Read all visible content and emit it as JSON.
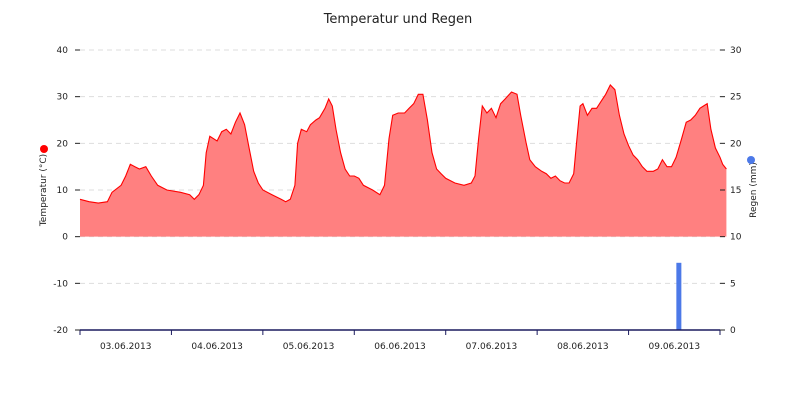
{
  "chart_data": {
    "type": "area",
    "title": "Temperatur und Regen",
    "x_ticks": [
      "03.06.2013",
      "04.06.2013",
      "05.06.2013",
      "06.06.2013",
      "07.06.2013",
      "08.06.2013",
      "09.06.2013"
    ],
    "y_left": {
      "label": "Temperatur (°C)",
      "range": [
        -20,
        40
      ],
      "ticks": [
        "40",
        "30",
        "20",
        "10",
        "0",
        "-10",
        "-20"
      ]
    },
    "y_right": {
      "label": "Regen (mm)",
      "range": [
        0,
        30
      ],
      "ticks": [
        "30",
        "25",
        "20",
        "15",
        "10",
        "5",
        "0"
      ]
    },
    "grid": true,
    "series": [
      {
        "axis": "left",
        "type": "area",
        "color": "#ff0000",
        "fill": "#ff8080",
        "points": [
          [
            0.0,
            8.0
          ],
          [
            0.1,
            7.5
          ],
          [
            0.2,
            7.2
          ],
          [
            0.3,
            7.5
          ],
          [
            0.35,
            9.5
          ],
          [
            0.45,
            11.0
          ],
          [
            0.5,
            13.0
          ],
          [
            0.55,
            15.5
          ],
          [
            0.6,
            15.0
          ],
          [
            0.65,
            14.5
          ],
          [
            0.72,
            15.0
          ],
          [
            0.78,
            13.0
          ],
          [
            0.85,
            11.0
          ],
          [
            0.95,
            10.0
          ],
          [
            1.1,
            9.5
          ],
          [
            1.2,
            9.0
          ],
          [
            1.25,
            8.0
          ],
          [
            1.3,
            9.0
          ],
          [
            1.35,
            11.0
          ],
          [
            1.38,
            18.0
          ],
          [
            1.42,
            21.5
          ],
          [
            1.5,
            20.5
          ],
          [
            1.55,
            22.5
          ],
          [
            1.6,
            23.0
          ],
          [
            1.65,
            22.0
          ],
          [
            1.7,
            24.5
          ],
          [
            1.75,
            26.5
          ],
          [
            1.8,
            24.0
          ],
          [
            1.85,
            19.0
          ],
          [
            1.9,
            14.0
          ],
          [
            1.95,
            11.5
          ],
          [
            2.0,
            10.0
          ],
          [
            2.1,
            9.0
          ],
          [
            2.2,
            8.0
          ],
          [
            2.25,
            7.5
          ],
          [
            2.3,
            8.0
          ],
          [
            2.35,
            11.0
          ],
          [
            2.38,
            20.0
          ],
          [
            2.42,
            23.0
          ],
          [
            2.48,
            22.5
          ],
          [
            2.52,
            24.0
          ],
          [
            2.58,
            25.0
          ],
          [
            2.62,
            25.5
          ],
          [
            2.68,
            27.5
          ],
          [
            2.72,
            29.5
          ],
          [
            2.76,
            28.0
          ],
          [
            2.8,
            23.0
          ],
          [
            2.85,
            18.0
          ],
          [
            2.9,
            14.5
          ],
          [
            2.95,
            13.0
          ],
          [
            3.0,
            13.0
          ],
          [
            3.05,
            12.5
          ],
          [
            3.1,
            11.0
          ],
          [
            3.2,
            10.0
          ],
          [
            3.28,
            9.0
          ],
          [
            3.33,
            11.0
          ],
          [
            3.38,
            21.0
          ],
          [
            3.42,
            26.0
          ],
          [
            3.48,
            26.5
          ],
          [
            3.55,
            26.5
          ],
          [
            3.6,
            27.5
          ],
          [
            3.65,
            28.5
          ],
          [
            3.7,
            30.5
          ],
          [
            3.75,
            30.5
          ],
          [
            3.8,
            25.0
          ],
          [
            3.85,
            18.0
          ],
          [
            3.9,
            14.5
          ],
          [
            3.95,
            13.5
          ],
          [
            4.0,
            12.5
          ],
          [
            4.1,
            11.5
          ],
          [
            4.2,
            11.0
          ],
          [
            4.28,
            11.5
          ],
          [
            4.32,
            13.0
          ],
          [
            4.36,
            21.0
          ],
          [
            4.4,
            28.0
          ],
          [
            4.45,
            26.5
          ],
          [
            4.5,
            27.5
          ],
          [
            4.55,
            25.5
          ],
          [
            4.6,
            28.5
          ],
          [
            4.65,
            29.5
          ],
          [
            4.72,
            31.0
          ],
          [
            4.78,
            30.5
          ],
          [
            4.82,
            26.0
          ],
          [
            4.88,
            20.0
          ],
          [
            4.92,
            16.5
          ],
          [
            4.98,
            15.0
          ],
          [
            5.05,
            14.0
          ],
          [
            5.1,
            13.5
          ],
          [
            5.15,
            12.5
          ],
          [
            5.2,
            13.0
          ],
          [
            5.25,
            12.0
          ],
          [
            5.3,
            11.5
          ],
          [
            5.35,
            11.5
          ],
          [
            5.4,
            13.5
          ],
          [
            5.43,
            20.0
          ],
          [
            5.47,
            28.0
          ],
          [
            5.5,
            28.5
          ],
          [
            5.55,
            26.0
          ],
          [
            5.6,
            27.5
          ],
          [
            5.65,
            27.5
          ],
          [
            5.7,
            29.0
          ],
          [
            5.75,
            30.5
          ],
          [
            5.8,
            32.5
          ],
          [
            5.85,
            31.5
          ],
          [
            5.9,
            26.0
          ],
          [
            5.95,
            22.0
          ],
          [
            6.0,
            19.5
          ],
          [
            6.05,
            17.5
          ],
          [
            6.1,
            16.5
          ],
          [
            6.15,
            15.0
          ],
          [
            6.2,
            14.0
          ],
          [
            6.27,
            14.0
          ],
          [
            6.32,
            14.5
          ],
          [
            6.37,
            16.5
          ],
          [
            6.42,
            15.0
          ],
          [
            6.47,
            15.0
          ],
          [
            6.52,
            17.0
          ],
          [
            6.58,
            21.0
          ],
          [
            6.63,
            24.5
          ],
          [
            6.68,
            25.0
          ],
          [
            6.73,
            26.0
          ],
          [
            6.78,
            27.5
          ],
          [
            6.82,
            28.0
          ],
          [
            6.86,
            28.5
          ],
          [
            6.9,
            23.0
          ],
          [
            6.95,
            19.0
          ],
          [
            7.0,
            17.0
          ],
          [
            7.03,
            15.5
          ],
          [
            7.07,
            14.5
          ]
        ]
      },
      {
        "axis": "right",
        "type": "bar",
        "color": "#4c79e8",
        "points": [
          [
            6.55,
            7.2
          ]
        ]
      }
    ]
  }
}
